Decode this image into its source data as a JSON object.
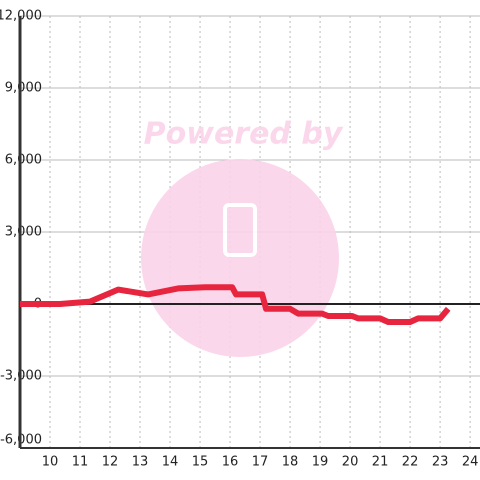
{
  "chart_data": {
    "type": "line",
    "watermark": "Powered by",
    "x": [
      9.0,
      10.33,
      11.33,
      12.27,
      13.27,
      14.27,
      15.17,
      16.07,
      16.2,
      17.07,
      17.2,
      18.0,
      18.27,
      19.07,
      19.27,
      20.07,
      20.27,
      21.0,
      21.27,
      22.0,
      22.27,
      23.0,
      23.27
    ],
    "series": [
      {
        "color": "#e8253f",
        "values": [
          0,
          0,
          100,
          600,
          400,
          650,
          700,
          700,
          400,
          400,
          -200,
          -200,
          -400,
          -400,
          -500,
          -500,
          -600,
          -600,
          -750,
          -750,
          -600,
          -600,
          -200
        ]
      }
    ],
    "xlim": [
      9,
      24.33
    ],
    "xticks": [
      10,
      11,
      12,
      13,
      14,
      15,
      16,
      17,
      18,
      19,
      20,
      21,
      22,
      23,
      24
    ],
    "ylim": [
      -6000,
      12000
    ],
    "yticks": [
      {
        "value": -6000,
        "label": "-6,000"
      },
      {
        "value": -3000,
        "label": "-3,000"
      },
      0,
      {
        "value": 3000,
        "label": "3,000"
      },
      {
        "value": 6000,
        "label": "6,000"
      },
      {
        "value": 9000,
        "label": "9,000"
      },
      {
        "value": 12000,
        "label": "12,000"
      }
    ],
    "grid": true
  }
}
